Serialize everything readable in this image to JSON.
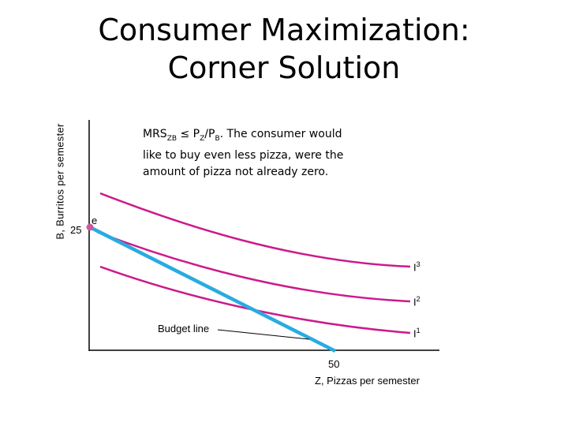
{
  "title": "Consumer Maximization: Corner Solution",
  "y_axis_label": "B, Burritos per semester",
  "x_axis_label": "Z, Pizzas per semester",
  "annotation": {
    "mrs": "MRS",
    "mrs_sub": "ZB",
    "rel": " ≤ P",
    "pz_sub": "Z",
    "slash": "/P",
    "pb_sub": "B",
    "rest": ". The consumer would like to buy even less pizza, were the amount of pizza not already zero."
  },
  "point_label": "e",
  "y_intercept": "25",
  "x_intercept": "50",
  "budget_label": "Budget line",
  "curves": [
    {
      "base": "I",
      "sup": "3"
    },
    {
      "base": "I",
      "sup": "2"
    },
    {
      "base": "I",
      "sup": "1"
    }
  ],
  "colors": {
    "budget_line": "#29abe2",
    "indifference": "#cc1a8c",
    "point": "#c85ba0"
  }
}
